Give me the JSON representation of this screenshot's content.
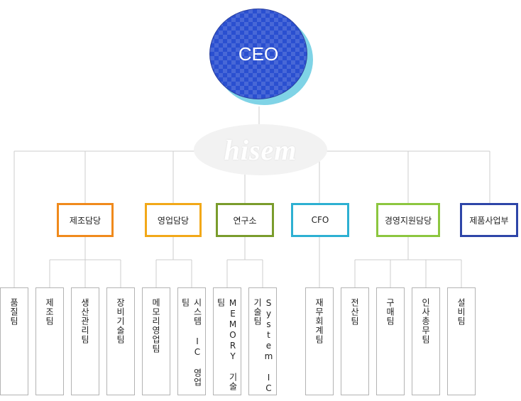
{
  "ceo": {
    "label": "CEO"
  },
  "watermark": {
    "text": "hisem"
  },
  "departments": [
    {
      "label": "제조담당",
      "color": "#f08a1c"
    },
    {
      "label": "영업담당",
      "color": "#f2a818"
    },
    {
      "label": "연구소",
      "color": "#7a9c2c"
    },
    {
      "label": "CFO",
      "color": "#2db0d2"
    },
    {
      "label": "경영지원담당",
      "color": "#8cc63f"
    },
    {
      "label": "제품사업부",
      "color": "#2e45a8"
    }
  ],
  "teams": [
    {
      "label": "품질팀"
    },
    {
      "label": "제조팀"
    },
    {
      "label": "생산관리팀"
    },
    {
      "label": "장비기술팀"
    },
    {
      "label": "메모리영업팀"
    },
    {
      "label": "시스템 IC 영업팀"
    },
    {
      "label": "MEMORY 기술팀"
    },
    {
      "label": "System IC 기술팀"
    },
    {
      "label": "재무회계팀"
    },
    {
      "label": "전산팀"
    },
    {
      "label": "구매팀"
    },
    {
      "label": "인사총무팀"
    },
    {
      "label": "설비팀"
    }
  ]
}
